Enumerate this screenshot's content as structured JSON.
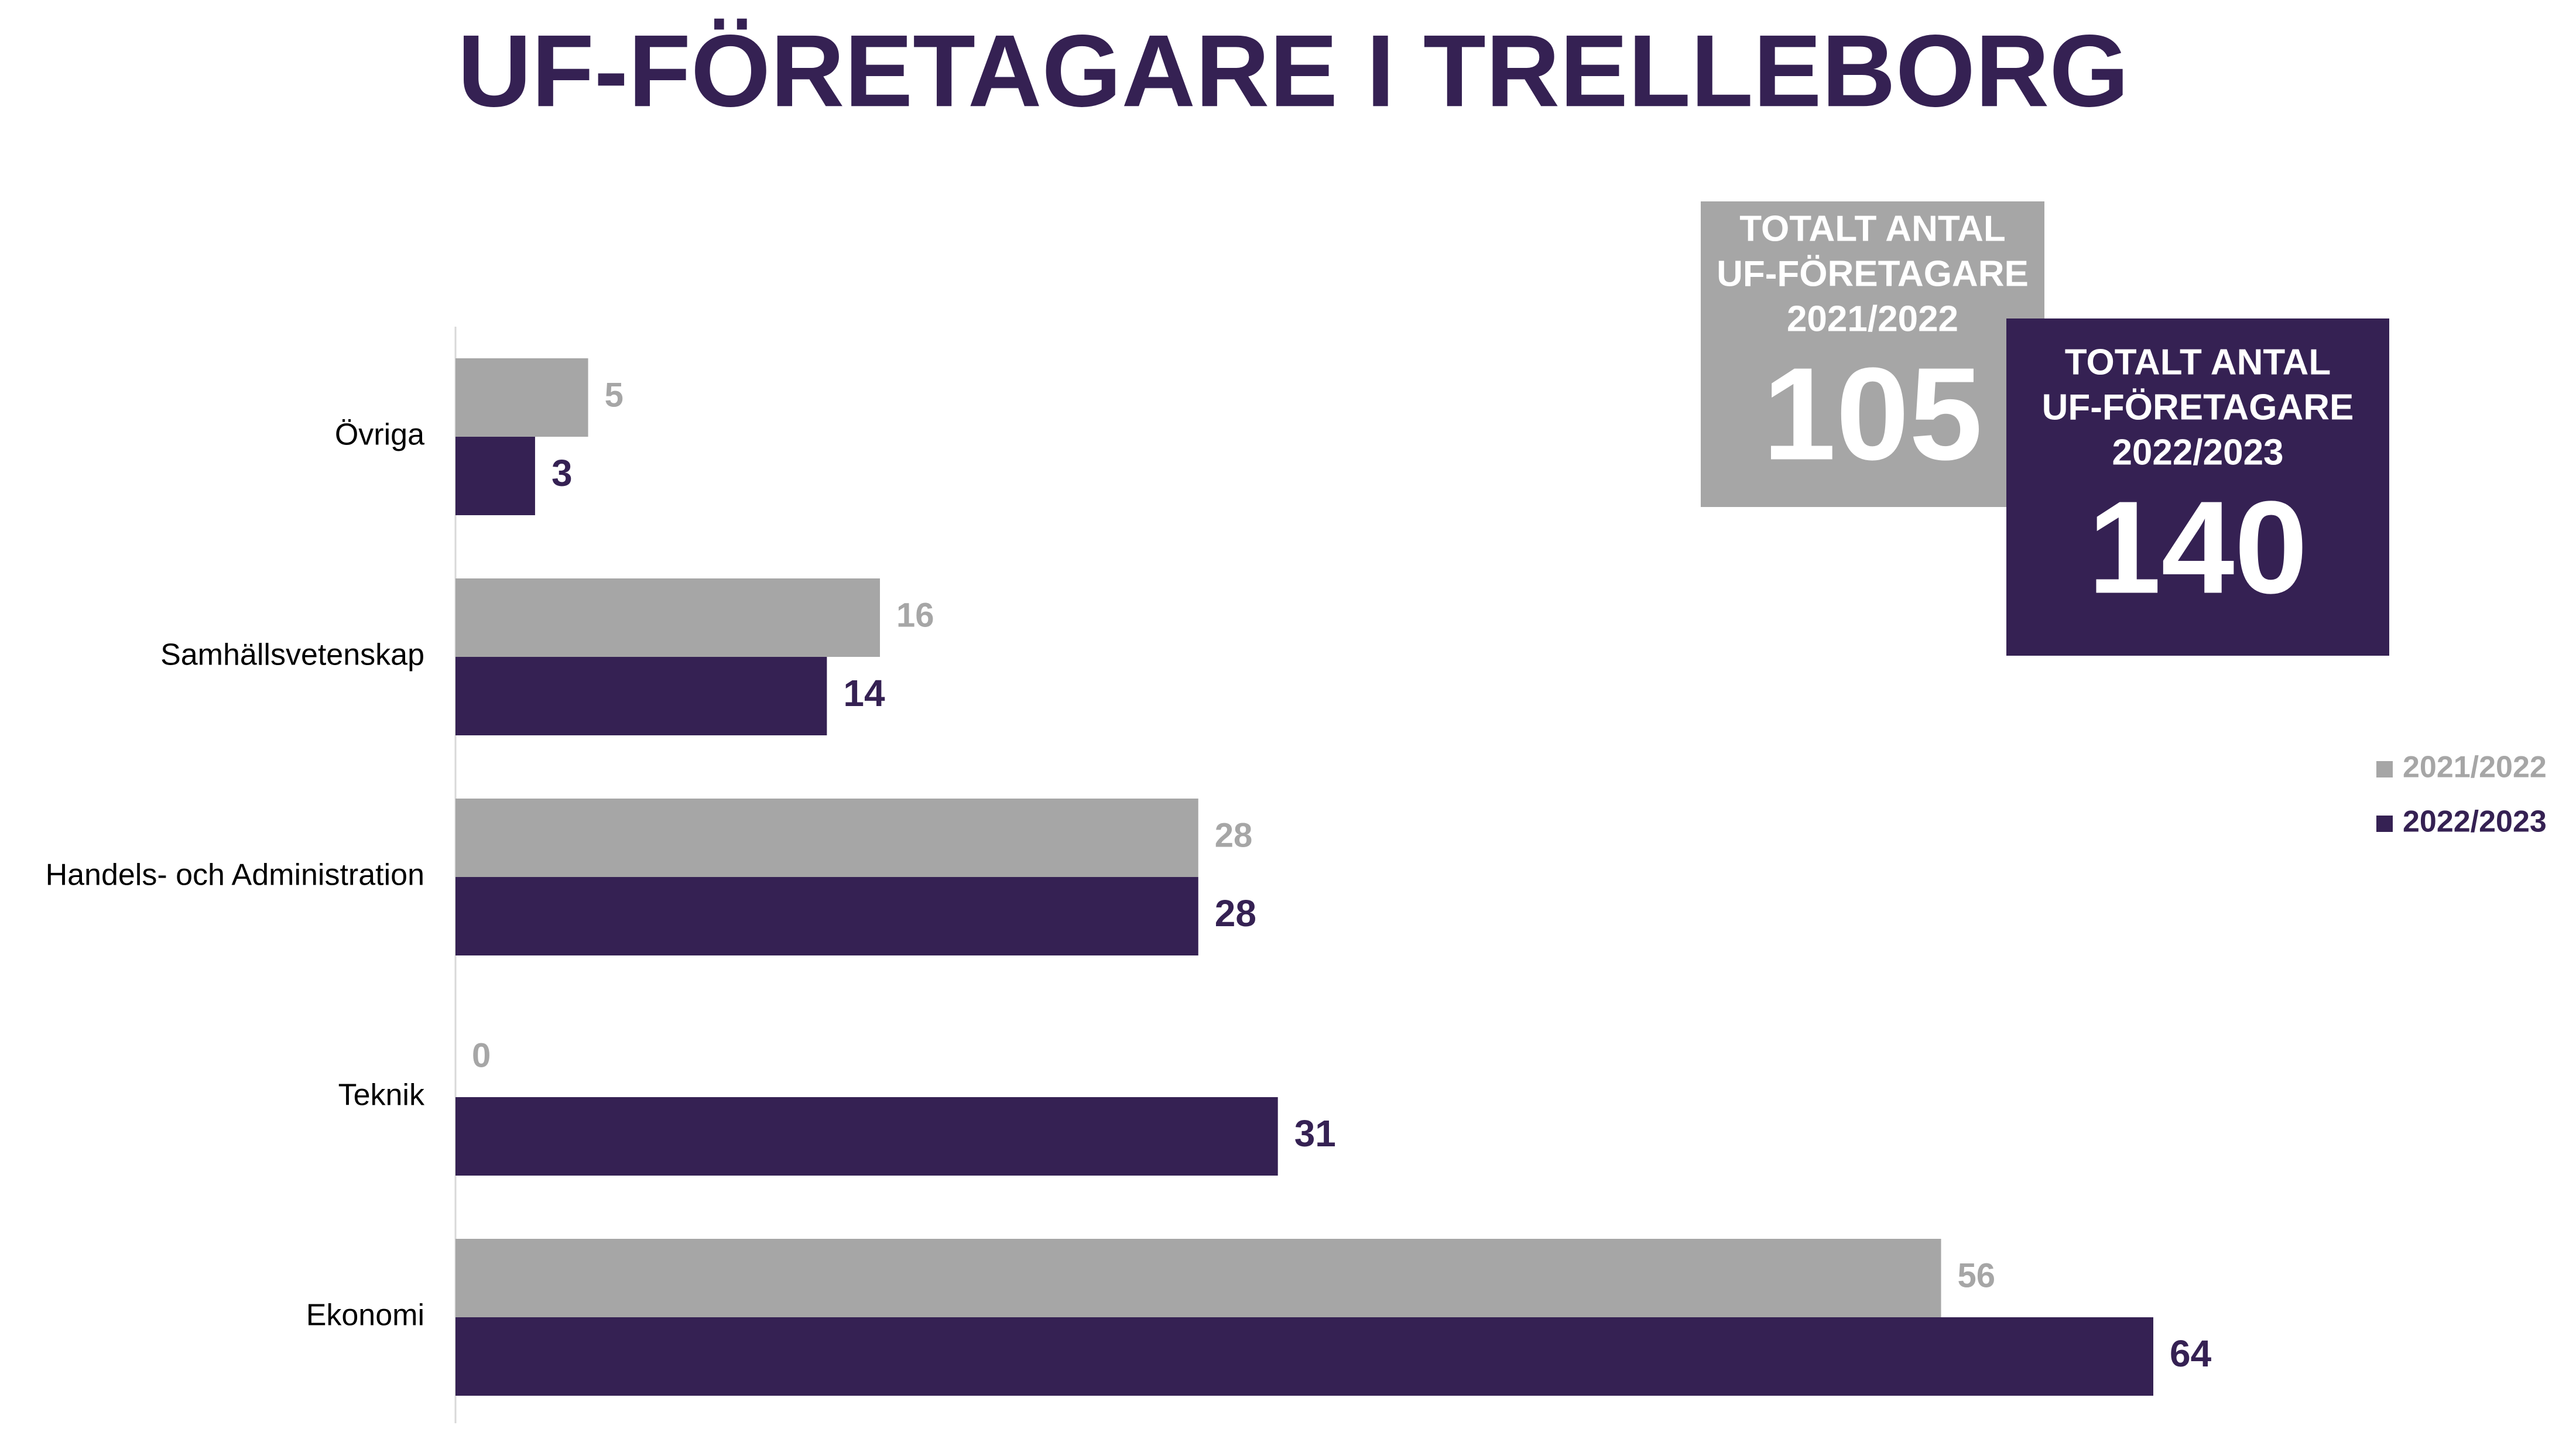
{
  "chart_data": {
    "type": "bar",
    "orientation": "horizontal",
    "title": "UF-FÖRETAGARE I TRELLEBORG",
    "categories": [
      "Övriga",
      "Samhällsvetenskap",
      "Handels- och Administration",
      "Teknik",
      "Ekonomi"
    ],
    "series": [
      {
        "name": "2021/2022",
        "color": "#a6a6a6",
        "values": [
          5,
          16,
          28,
          0,
          56
        ]
      },
      {
        "name": "2022/2023",
        "color": "#352153",
        "values": [
          3,
          14,
          28,
          31,
          64
        ]
      }
    ],
    "legend": "right",
    "annotations": [
      {
        "label_lines": [
          "TOTALT ANTAL",
          "UF-FÖRETAGARE",
          "2021/2022"
        ],
        "value": 105,
        "color": "#a6a6a6"
      },
      {
        "label_lines": [
          "TOTALT ANTAL",
          "UF-FÖRETAGARE",
          "2022/2023"
        ],
        "value": 140,
        "color": "#352153"
      }
    ]
  }
}
